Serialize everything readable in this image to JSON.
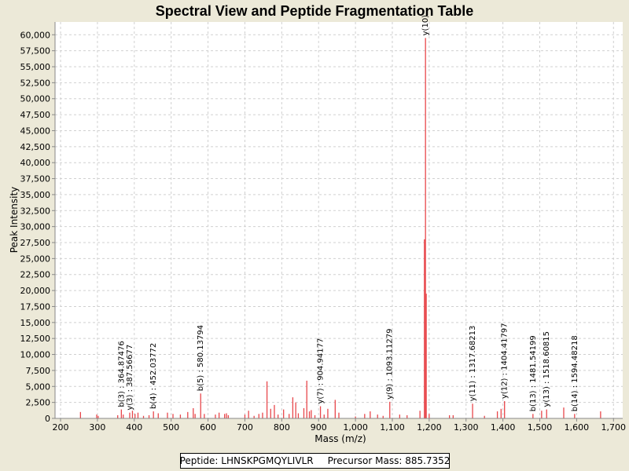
{
  "chart_data": {
    "type": "bar",
    "title": "Spectral View and Peptide Fragmentation Table",
    "xlabel": "Mass (m/z)",
    "ylabel": "Peak Intensity",
    "xlim": [
      185,
      1725
    ],
    "ylim": [
      0,
      62000
    ],
    "grid": true,
    "bar_color": "#e8474b",
    "x_ticks": [
      "200",
      "300",
      "400",
      "500",
      "600",
      "700",
      "800",
      "900",
      "1,000",
      "1,100",
      "1,200",
      "1,300",
      "1,400",
      "1,500",
      "1,600",
      "1,700"
    ],
    "y_ticks": [
      "0",
      "2,500",
      "5,000",
      "7,500",
      "10,000",
      "12,500",
      "15,000",
      "17,500",
      "20,000",
      "22,500",
      "25,000",
      "27,500",
      "30,000",
      "32,500",
      "35,000",
      "37,500",
      "40,000",
      "42,500",
      "45,000",
      "47,500",
      "50,000",
      "52,500",
      "55,000",
      "57,500",
      "60,000"
    ],
    "peaks": [
      {
        "mz": 254,
        "intensity": 1000
      },
      {
        "mz": 298,
        "intensity": 600
      },
      {
        "mz": 302,
        "intensity": 400
      },
      {
        "mz": 355,
        "intensity": 500
      },
      {
        "mz": 364.9,
        "intensity": 1400
      },
      {
        "mz": 370,
        "intensity": 600
      },
      {
        "mz": 387.6,
        "intensity": 900
      },
      {
        "mz": 395,
        "intensity": 1200
      },
      {
        "mz": 402,
        "intensity": 700
      },
      {
        "mz": 410,
        "intensity": 900
      },
      {
        "mz": 425,
        "intensity": 400
      },
      {
        "mz": 440,
        "intensity": 500
      },
      {
        "mz": 452,
        "intensity": 1100
      },
      {
        "mz": 465,
        "intensity": 800
      },
      {
        "mz": 490,
        "intensity": 900
      },
      {
        "mz": 505,
        "intensity": 700
      },
      {
        "mz": 525,
        "intensity": 600
      },
      {
        "mz": 545,
        "intensity": 1000
      },
      {
        "mz": 560,
        "intensity": 1600
      },
      {
        "mz": 565,
        "intensity": 700
      },
      {
        "mz": 580.1,
        "intensity": 3900
      },
      {
        "mz": 590,
        "intensity": 700
      },
      {
        "mz": 620,
        "intensity": 600
      },
      {
        "mz": 630,
        "intensity": 900
      },
      {
        "mz": 645,
        "intensity": 700
      },
      {
        "mz": 650,
        "intensity": 800
      },
      {
        "mz": 655,
        "intensity": 500
      },
      {
        "mz": 700,
        "intensity": 600
      },
      {
        "mz": 710,
        "intensity": 1200
      },
      {
        "mz": 725,
        "intensity": 400
      },
      {
        "mz": 738,
        "intensity": 700
      },
      {
        "mz": 748,
        "intensity": 900
      },
      {
        "mz": 760,
        "intensity": 5800
      },
      {
        "mz": 770,
        "intensity": 1500
      },
      {
        "mz": 780,
        "intensity": 2100
      },
      {
        "mz": 790,
        "intensity": 600
      },
      {
        "mz": 805,
        "intensity": 1400
      },
      {
        "mz": 820,
        "intensity": 700
      },
      {
        "mz": 830,
        "intensity": 3300
      },
      {
        "mz": 838,
        "intensity": 2500
      },
      {
        "mz": 845,
        "intensity": 800
      },
      {
        "mz": 860,
        "intensity": 1600
      },
      {
        "mz": 868,
        "intensity": 5900
      },
      {
        "mz": 875,
        "intensity": 1100
      },
      {
        "mz": 880,
        "intensity": 1300
      },
      {
        "mz": 890,
        "intensity": 500
      },
      {
        "mz": 905,
        "intensity": 1900
      },
      {
        "mz": 915,
        "intensity": 600
      },
      {
        "mz": 925,
        "intensity": 1500
      },
      {
        "mz": 945,
        "intensity": 2900
      },
      {
        "mz": 955,
        "intensity": 900
      },
      {
        "mz": 1000,
        "intensity": 300
      },
      {
        "mz": 1025,
        "intensity": 700
      },
      {
        "mz": 1040,
        "intensity": 1100
      },
      {
        "mz": 1060,
        "intensity": 600
      },
      {
        "mz": 1075,
        "intensity": 400
      },
      {
        "mz": 1093.1,
        "intensity": 2600
      },
      {
        "mz": 1120,
        "intensity": 600
      },
      {
        "mz": 1140,
        "intensity": 500
      },
      {
        "mz": 1175,
        "intensity": 1200
      },
      {
        "mz": 1187,
        "intensity": 28000
      },
      {
        "mz": 1190,
        "intensity": 59500
      },
      {
        "mz": 1192,
        "intensity": 19500
      },
      {
        "mz": 1200,
        "intensity": 700
      },
      {
        "mz": 1255,
        "intensity": 500
      },
      {
        "mz": 1265,
        "intensity": 500
      },
      {
        "mz": 1317.7,
        "intensity": 2300
      },
      {
        "mz": 1350,
        "intensity": 400
      },
      {
        "mz": 1385,
        "intensity": 1100
      },
      {
        "mz": 1395,
        "intensity": 1500
      },
      {
        "mz": 1404.4,
        "intensity": 2700
      },
      {
        "mz": 1481.5,
        "intensity": 700
      },
      {
        "mz": 1505,
        "intensity": 1200
      },
      {
        "mz": 1518.6,
        "intensity": 1400
      },
      {
        "mz": 1565,
        "intensity": 1700
      },
      {
        "mz": 1594.5,
        "intensity": 700
      },
      {
        "mz": 1665,
        "intensity": 1100
      }
    ],
    "annotations": [
      {
        "label": "b(3) : 364.87476",
        "mz": 364.9,
        "intensity": 1400
      },
      {
        "label": "y(3) : 387.56677",
        "mz": 387.6,
        "intensity": 900
      },
      {
        "label": "b(4) : 452.03772",
        "mz": 452,
        "intensity": 1100
      },
      {
        "label": "b(5) : 580.13794",
        "mz": 580.1,
        "intensity": 3900
      },
      {
        "label": "y(7) : 904.94177",
        "mz": 905,
        "intensity": 1900
      },
      {
        "label": "y(9) : 1093.11279",
        "mz": 1093.1,
        "intensity": 2600
      },
      {
        "label": "y(10)",
        "mz": 1190,
        "intensity": 59500
      },
      {
        "label": "y(11) : 1317.68213",
        "mz": 1317.7,
        "intensity": 2300
      },
      {
        "label": "y(12) : 1404.41797",
        "mz": 1404.4,
        "intensity": 2700
      },
      {
        "label": "b(13) : 1481.54199",
        "mz": 1481.5,
        "intensity": 700
      },
      {
        "label": "y(13) : 1518.60815",
        "mz": 1518.6,
        "intensity": 1400
      },
      {
        "label": "b(14) : 1594.48218",
        "mz": 1594.5,
        "intensity": 700
      }
    ]
  },
  "footer": {
    "peptide": "Peptide: LHNSKPGMQYLIVLR",
    "precursor": "Precursor Mass: 885.7352"
  }
}
